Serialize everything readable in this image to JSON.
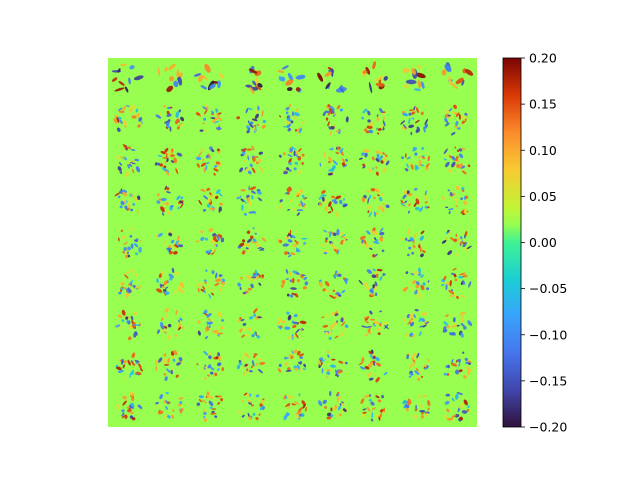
{
  "chart_data": {
    "type": "heatmap",
    "description_of_content": "",
    "grid": {
      "rows": 9,
      "cols": 9
    },
    "background_value": 0.0,
    "colormap": "turbo",
    "colorbar": {
      "vmin": -0.2,
      "vmax": 0.2,
      "ticks": [
        0.2,
        0.15,
        0.1,
        0.05,
        0.0,
        -0.05,
        -0.1,
        -0.15,
        -0.2
      ],
      "tick_labels": [
        "0.20",
        "0.15",
        "0.10",
        "0.05",
        "0.00",
        "−0.05",
        "−0.10",
        "−0.15",
        "−0.20"
      ]
    },
    "title": "",
    "xlabel": "",
    "ylabel": "",
    "axes_visible": false
  }
}
